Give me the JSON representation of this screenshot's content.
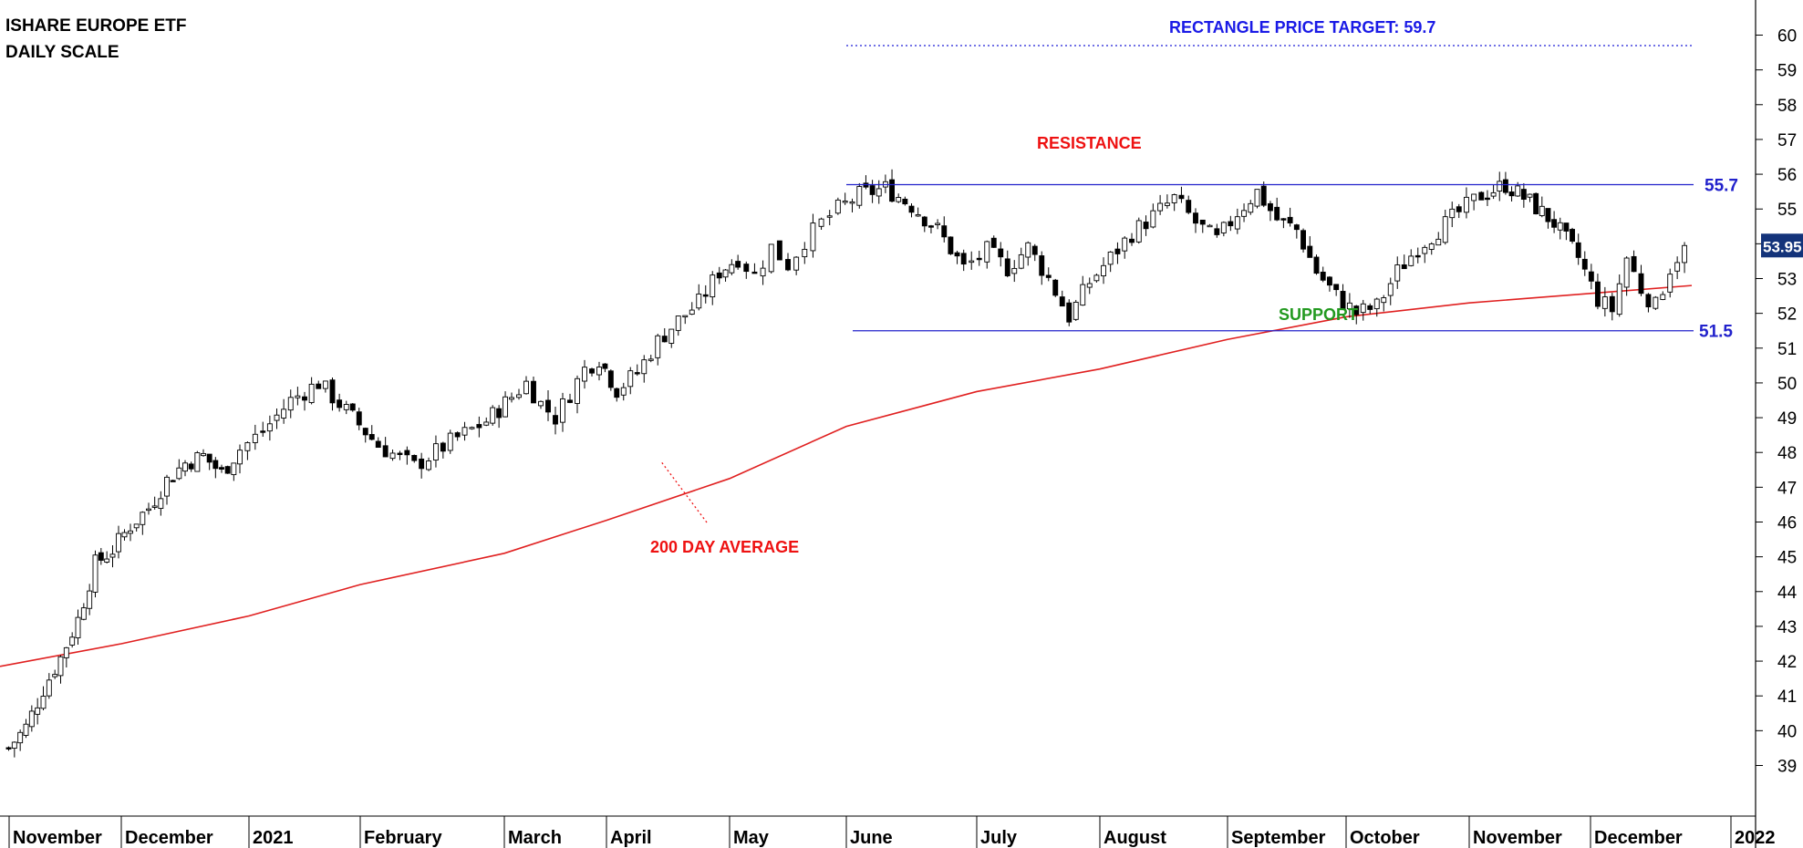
{
  "chart_data": {
    "type": "candlestick",
    "title": "ISHARE EUROPE ETF",
    "subtitle": "DAILY SCALE",
    "ylim": [
      38.2,
      60.8
    ],
    "y_ticks": [
      39,
      40,
      41,
      42,
      43,
      44,
      45,
      46,
      47,
      48,
      49,
      50,
      51,
      52,
      53,
      54,
      55,
      56,
      57,
      58,
      59,
      60
    ],
    "x_tick_labels": [
      "November",
      "December",
      "2021",
      "February",
      "March",
      "April",
      "May",
      "June",
      "July",
      "August",
      "September",
      "October",
      "November",
      "December",
      "2022"
    ],
    "last_price_label": "53.95",
    "last_price": 53.95,
    "resistance": {
      "label": "RESISTANCE",
      "value": 55.7,
      "value_label": "55.7"
    },
    "support": {
      "label": "SUPPORT",
      "value": 51.5,
      "value_label": "51.5"
    },
    "price_target": {
      "label": "RECTANGLE PRICE TARGET: 59.7",
      "value": 59.7
    },
    "moving_average": {
      "label": "200 DAY AVERAGE",
      "points": [
        [
          "Nov",
          41.85
        ],
        [
          "Dec",
          42.5
        ],
        [
          "2021",
          43.3
        ],
        [
          "Feb",
          44.2
        ],
        [
          "Mar",
          45.1
        ],
        [
          "Apr",
          46.05
        ],
        [
          "May",
          47.25
        ],
        [
          "Jun",
          48.75
        ],
        [
          "Jul",
          49.75
        ],
        [
          "Aug",
          50.4
        ],
        [
          "Sep",
          51.25
        ],
        [
          "Oct",
          51.9
        ],
        [
          "Nov",
          52.3
        ],
        [
          "Dec",
          52.8
        ]
      ]
    },
    "price_path": [
      [
        "Nov",
        39.5
      ],
      [
        "Nov",
        40.1
      ],
      [
        "Nov",
        41.2
      ],
      [
        "Nov",
        42.1
      ],
      [
        "Nov",
        43.2
      ],
      [
        "Nov",
        44.8
      ],
      [
        "Nov",
        45.2
      ],
      [
        "Dec",
        45.9
      ],
      [
        "Dec",
        46.4
      ],
      [
        "Dec",
        47.2
      ],
      [
        "Dec",
        47.7
      ],
      [
        "Dec",
        47.9
      ],
      [
        "Dec",
        47.4
      ],
      [
        "Dec",
        48.1
      ],
      [
        "2021",
        48.6
      ],
      [
        "2021",
        49.5
      ],
      [
        "2021",
        50.0
      ],
      [
        "2021",
        49.2
      ],
      [
        "Feb",
        48.2
      ],
      [
        "Feb",
        47.6
      ],
      [
        "Feb",
        48.3
      ],
      [
        "Feb",
        48.9
      ],
      [
        "Mar",
        49.6
      ],
      [
        "Mar",
        50.0
      ],
      [
        "Mar",
        49.4
      ],
      [
        "Mar",
        49.0
      ],
      [
        "Mar",
        49.7
      ],
      [
        "Mar",
        50.4
      ],
      [
        "Mar",
        50.7
      ],
      [
        "Apr",
        49.8
      ],
      [
        "Apr",
        50.3
      ],
      [
        "Apr",
        51.2
      ],
      [
        "Apr",
        51.8
      ],
      [
        "Apr",
        52.3
      ],
      [
        "Apr",
        53.2
      ],
      [
        "May",
        53.6
      ],
      [
        "May",
        53.1
      ],
      [
        "May",
        53.9
      ],
      [
        "May",
        53.4
      ],
      [
        "May",
        54.1
      ],
      [
        "May",
        54.6
      ],
      [
        "May",
        55.0
      ],
      [
        "Jun",
        55.4
      ],
      [
        "Jun",
        55.6
      ],
      [
        "Jun",
        55.1
      ],
      [
        "Jun",
        54.4
      ],
      [
        "Jun",
        53.3
      ],
      [
        "Jul",
        53.8
      ],
      [
        "Jul",
        53.3
      ],
      [
        "Jul",
        53.9
      ],
      [
        "Jul",
        53.0
      ],
      [
        "Jul",
        51.9
      ],
      [
        "Jul",
        52.9
      ],
      [
        "Aug",
        53.6
      ],
      [
        "Aug",
        54.3
      ],
      [
        "Aug",
        54.8
      ],
      [
        "Aug",
        55.3
      ],
      [
        "Aug",
        54.6
      ],
      [
        "Aug",
        54.1
      ],
      [
        "Sep",
        54.9
      ],
      [
        "Sep",
        55.5
      ],
      [
        "Sep",
        54.7
      ],
      [
        "Sep",
        54.4
      ],
      [
        "Sep",
        53.2
      ],
      [
        "Sep",
        52.5
      ],
      [
        "Oct",
        52.0
      ],
      [
        "Oct",
        52.2
      ],
      [
        "Oct",
        53.2
      ],
      [
        "Oct",
        53.9
      ],
      [
        "Oct",
        54.4
      ],
      [
        "Oct",
        54.9
      ],
      [
        "Nov",
        55.4
      ],
      [
        "Nov",
        55.7
      ],
      [
        "Nov",
        55.2
      ],
      [
        "Nov",
        54.6
      ],
      [
        "Nov",
        53.6
      ],
      [
        "Dec",
        52.4
      ],
      [
        "Dec",
        52.1
      ],
      [
        "Dec",
        53.6
      ],
      [
        "Dec",
        52.7
      ],
      [
        "Dec",
        52.2
      ],
      [
        "Dec",
        53.3
      ],
      [
        "Dec",
        53.95
      ]
    ],
    "colors": {
      "support_resistance": "#2222cc",
      "price_target": "#4444dd",
      "moving_average": "#e02020",
      "resistance_label": "#ee1111",
      "support_label": "#22991f",
      "ma_label": "#ee1111",
      "target_label": "#1a1ae6",
      "candle_up_fill": "#ffffff",
      "candle_down_fill": "#000000",
      "last_price_bg": "#13337a"
    }
  }
}
